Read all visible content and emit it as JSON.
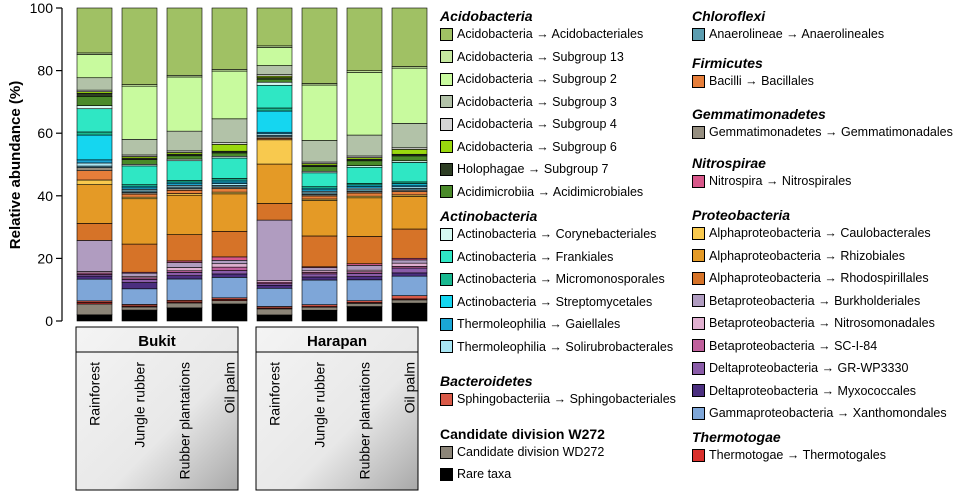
{
  "chart_data": {
    "type": "bar",
    "stacked": true,
    "ylabel": "Relative abundance (%)",
    "ylim": [
      0,
      100
    ],
    "yticks": [
      0,
      20,
      40,
      60,
      80,
      100
    ],
    "groups": [
      {
        "name": "Bukit",
        "categories": [
          "Rainforest",
          "Jungle rubber",
          "Rubber plantations",
          "Oil palm"
        ]
      },
      {
        "name": "Harapan",
        "categories": [
          "Rainforest",
          "Jungle rubber",
          "Rubber plantations",
          "Oil palm"
        ]
      }
    ],
    "categories": [
      "Rainforest",
      "Jungle rubber",
      "Rubber plantations",
      "Oil palm",
      "Rainforest",
      "Jungle rubber",
      "Rubber plantations",
      "Oil palm"
    ],
    "series": [
      {
        "name": "Rare taxa",
        "color": "#000000",
        "values": [
          2,
          3.5,
          4,
          5,
          2,
          3.5,
          4.5,
          5.5
        ]
      },
      {
        "name": "Candidate division W272 → Candidate division WD272",
        "color": "#8c8578",
        "values": [
          3.5,
          1,
          1.5,
          1,
          2,
          1,
          1,
          1
        ]
      },
      {
        "name": "Thermotogae → Thermotogales",
        "color": "#d9302c",
        "values": [
          0.5,
          0.3,
          0.3,
          0.3,
          0.3,
          0.3,
          0.3,
          0.3
        ]
      },
      {
        "name": "Sphingobacteriia → Sphingobacteriales",
        "color": "#d95a48",
        "values": [
          0.5,
          0.5,
          0.5,
          0.5,
          0.5,
          0.5,
          0.5,
          1
        ]
      },
      {
        "name": "Gammaproteobacteria → Xanthomondales",
        "color": "#7ea6d8",
        "values": [
          7,
          5,
          6.5,
          6,
          6,
          8,
          6.5,
          6
        ]
      },
      {
        "name": "Deltaproteobacteria → Myxococcales",
        "color": "#4b2f7f",
        "values": [
          1,
          2,
          1,
          1,
          1,
          1,
          1,
          1
        ]
      },
      {
        "name": "Deltaproteobacteria → GR-WP3330",
        "color": "#8a5ca8",
        "values": [
          0.5,
          1,
          1,
          1,
          0.5,
          1,
          1,
          1.5
        ]
      },
      {
        "name": "Betaproteobacteria → SC-I-84",
        "color": "#c0609c",
        "values": [
          0.5,
          0.5,
          0.5,
          1,
          0.5,
          0.5,
          0.5,
          0.5
        ]
      },
      {
        "name": "Betaproteobacteria → Nitrosomonadales",
        "color": "#e0b0d0",
        "values": [
          0.5,
          0.5,
          1,
          1,
          0.5,
          0.5,
          0.5,
          1
        ]
      },
      {
        "name": "Betaproteobacteria → Burkholderiales",
        "color": "#b09cc0",
        "values": [
          10,
          1,
          1.5,
          1,
          20,
          1,
          1.5,
          1
        ]
      },
      {
        "name": "Nitrospira → Nitrospirales",
        "color": "#d8588a",
        "values": [
          0,
          0.3,
          0.5,
          1,
          0,
          0.3,
          0.5,
          0.5
        ]
      },
      {
        "name": "Alphaproteobacteria → Rhodospirillales",
        "color": "#d67328",
        "values": [
          5.5,
          9,
          8,
          7.5,
          5.5,
          10,
          8.5,
          9
        ]
      },
      {
        "name": "Alphaproteobacteria → Rhizobiales",
        "color": "#e49a26",
        "values": [
          12.5,
          14.5,
          12,
          11,
          13,
          11.5,
          12,
          10
        ]
      },
      {
        "name": "Alphaproteobacteria → Caulobacterales",
        "color": "#f8c94e",
        "values": [
          1.5,
          0.5,
          0.5,
          0.5,
          8,
          0.5,
          0.5,
          0.5
        ]
      },
      {
        "name": "Bacilli → Bacillales",
        "color": "#e67e3a",
        "values": [
          3,
          1,
          1,
          1,
          0.5,
          1,
          1,
          1
        ]
      },
      {
        "name": "Gemmatimonadetes → Gemmatimonadales",
        "color": "#958e80",
        "values": [
          1,
          0.5,
          0.5,
          0.5,
          0.5,
          0.5,
          0.5,
          0.5
        ]
      },
      {
        "name": "Anaerolineae → Anaerolineales",
        "color": "#5c9db0",
        "values": [
          0.5,
          0.5,
          0.5,
          0.5,
          0.5,
          0.5,
          0.5,
          0.5
        ]
      },
      {
        "name": "Thermoleophilia → Solirubrobacterales",
        "color": "#a8e6f4",
        "values": [
          1,
          0.5,
          0.5,
          0.5,
          0.5,
          0.5,
          0.5,
          0.5
        ]
      },
      {
        "name": "Thermoleophilia → Gaiellales",
        "color": "#1aa6d6",
        "values": [
          1,
          0.5,
          0.5,
          0.5,
          0.5,
          0.5,
          0.5,
          0.5
        ]
      },
      {
        "name": "Actinobacteria → Streptomycetales",
        "color": "#15d6f0",
        "values": [
          8,
          0.5,
          0.5,
          0.5,
          7,
          0.5,
          0.5,
          0.5
        ]
      },
      {
        "name": "Actinobacteria → Micromonosporales",
        "color": "#18b890",
        "values": [
          1,
          0.5,
          0.5,
          0.5,
          1,
          0.5,
          0.5,
          0.5
        ]
      },
      {
        "name": "Actinobacteria → Frankiales",
        "color": "#2fe7c4",
        "values": [
          7.5,
          6,
          6,
          6,
          7.5,
          4.5,
          5,
          6
        ]
      },
      {
        "name": "Actinobacteria → Corynebacteriales",
        "color": "#d6faf2",
        "values": [
          1,
          0.5,
          0.5,
          0.5,
          1,
          0.5,
          0.5,
          0.5
        ]
      },
      {
        "name": "Acidimicrobiia → Acidimicrobiales",
        "color": "#4a8a2a",
        "values": [
          3,
          1.5,
          1,
          1,
          1,
          1.5,
          1.5,
          1.5
        ]
      },
      {
        "name": "Holophagae → Subgroup 7",
        "color": "#2e3e24",
        "values": [
          1,
          0.5,
          0.5,
          0.5,
          0.5,
          0.5,
          0.5,
          0.5
        ]
      },
      {
        "name": "Acidobacteria → Subgroup 6",
        "color": "#9ad80e",
        "values": [
          0.5,
          0.5,
          0.5,
          2,
          0.5,
          0.5,
          0.5,
          1.5
        ]
      },
      {
        "name": "Acidobacteria → Subgroup 4",
        "color": "#d4d4d4",
        "values": [
          0.5,
          0.5,
          0.5,
          0.5,
          0.5,
          0.5,
          0.5,
          0.5
        ]
      },
      {
        "name": "Acidobacteria → Subgroup 3",
        "color": "#b2c2a8",
        "values": [
          4,
          5,
          6,
          7,
          3,
          7,
          6.5,
          7.5
        ]
      },
      {
        "name": "Acidobacteria → Subgroup 2",
        "color": "#c8fa9e",
        "values": [
          7.5,
          17,
          16.5,
          14,
          6,
          18,
          19.5,
          17
        ]
      },
      {
        "name": "Acidobacteria → Subgroup 13",
        "color": "#c6e9a0",
        "values": [
          0.5,
          0.5,
          0.5,
          0.5,
          0.5,
          0.5,
          0.5,
          0.5
        ]
      },
      {
        "name": "Acidobacteria → Acidobacteriales",
        "color": "#a0c164",
        "values": [
          14.5,
          24.5,
          20.5,
          18,
          12.5,
          24.5,
          19.5,
          18
        ]
      }
    ]
  },
  "legend": {
    "groups": [
      {
        "title": "Acidobacteria",
        "italic": true,
        "items": [
          {
            "label": "Acidobacteria → Acidobacteriales",
            "color": "#a0c164"
          },
          {
            "label": "Acidobacteria → Subgroup 13",
            "color": "#c6e9a0"
          },
          {
            "label": "Acidobacteria → Subgroup 2",
            "color": "#c8fa9e"
          },
          {
            "label": "Acidobacteria → Subgroup 3",
            "color": "#b2c2a8"
          },
          {
            "label": "Acidobacteria → Subgroup 4",
            "color": "#d4d4d4"
          },
          {
            "label": "Acidobacteria → Subgroup 6",
            "color": "#9ad80e"
          },
          {
            "label": "Holophagae → Subgroup 7",
            "color": "#2e3e24"
          },
          {
            "label": "Acidimicrobiia → Acidimicrobiales",
            "color": "#4a8a2a"
          }
        ]
      },
      {
        "title": "Actinobacteria",
        "italic": true,
        "items": [
          {
            "label": "Actinobacteria → Corynebacteriales",
            "color": "#d6faf2"
          },
          {
            "label": "Actinobacteria → Frankiales",
            "color": "#2fe7c4"
          },
          {
            "label": "Actinobacteria → Micromonosporales",
            "color": "#18b890"
          },
          {
            "label": "Actinobacteria → Streptomycetales",
            "color": "#15d6f0"
          },
          {
            "label": "Thermoleophilia → Gaiellales",
            "color": "#1aa6d6"
          },
          {
            "label": "Thermoleophilia → Solirubrobacterales",
            "color": "#a8e6f4"
          }
        ]
      },
      {
        "title": "Bacteroidetes",
        "italic": true,
        "items": [
          {
            "label": "Sphingobacteriia → Sphingobacteriales",
            "color": "#d95a48"
          }
        ]
      },
      {
        "title": "Candidate division W272",
        "italic": false,
        "items": [
          {
            "label": "Candidate division WD272",
            "color": "#8c8578"
          }
        ]
      },
      {
        "title": "",
        "italic": false,
        "items": [
          {
            "label": "Rare taxa",
            "color": "#000000"
          }
        ]
      },
      {
        "title": "Chloroflexi",
        "italic": true,
        "items": [
          {
            "label": "Anaerolineae → Anaerolineales",
            "color": "#5c9db0"
          }
        ]
      },
      {
        "title": "Firmicutes",
        "italic": true,
        "items": [
          {
            "label": "Bacilli → Bacillales",
            "color": "#e67e3a"
          }
        ]
      },
      {
        "title": "Gemmatimonadetes",
        "italic": true,
        "items": [
          {
            "label": "Gemmatimonadetes → Gemmatimonadales",
            "color": "#958e80"
          }
        ]
      },
      {
        "title": "Nitrospirae",
        "italic": true,
        "items": [
          {
            "label": "Nitrospira → Nitrospirales",
            "color": "#d8588a"
          }
        ]
      },
      {
        "title": "Proteobacteria",
        "italic": true,
        "items": [
          {
            "label": "Alphaproteobacteria → Caulobacterales",
            "color": "#f8c94e"
          },
          {
            "label": "Alphaproteobacteria → Rhizobiales",
            "color": "#e49a26"
          },
          {
            "label": "Alphaproteobacteria → Rhodospirillales",
            "color": "#d67328"
          },
          {
            "label": "Betaproteobacteria → Burkholderiales",
            "color": "#b09cc0"
          },
          {
            "label": "Betaproteobacteria → Nitrosomonadales",
            "color": "#e0b0d0"
          },
          {
            "label": "Betaproteobacteria → SC-I-84",
            "color": "#c0609c"
          },
          {
            "label": "Deltaproteobacteria → GR-WP3330",
            "color": "#8a5ca8"
          },
          {
            "label": "Deltaproteobacteria → Myxococcales",
            "color": "#4b2f7f"
          },
          {
            "label": "Gammaproteobacteria → Xanthomondales",
            "color": "#7ea6d8"
          }
        ]
      },
      {
        "title": "Thermotogae",
        "italic": true,
        "items": [
          {
            "label": "Thermotogae → Thermotogales",
            "color": "#d9302c"
          }
        ]
      }
    ]
  }
}
